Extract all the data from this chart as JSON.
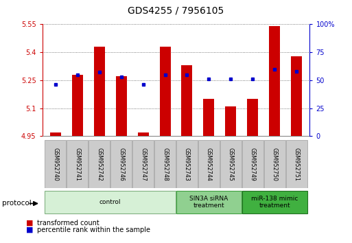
{
  "title": "GDS4255 / 7956105",
  "samples": [
    "GSM952740",
    "GSM952741",
    "GSM952742",
    "GSM952746",
    "GSM952747",
    "GSM952748",
    "GSM952743",
    "GSM952744",
    "GSM952745",
    "GSM952749",
    "GSM952750",
    "GSM952751"
  ],
  "red_values": [
    4.97,
    5.28,
    5.43,
    5.27,
    4.97,
    5.43,
    5.33,
    5.15,
    5.11,
    5.15,
    5.54,
    5.38
  ],
  "blue_values": [
    46,
    55,
    57,
    53,
    46,
    55,
    55,
    51,
    51,
    51,
    60,
    58
  ],
  "ylim_left": [
    4.95,
    5.55
  ],
  "ylim_right": [
    0,
    100
  ],
  "yticks_left": [
    4.95,
    5.1,
    5.25,
    5.4,
    5.55
  ],
  "yticks_right": [
    0,
    25,
    50,
    75,
    100
  ],
  "ytick_labels_left": [
    "4.95",
    "5.1",
    "5.25",
    "5.4",
    "5.55"
  ],
  "ytick_labels_right": [
    "0",
    "25",
    "50",
    "75",
    "100%"
  ],
  "group_spans": [
    {
      "start": 0,
      "end": 5,
      "label": "control",
      "facecolor": "#d6f0d6",
      "edgecolor": "#80b080"
    },
    {
      "start": 6,
      "end": 8,
      "label": "SIN3A siRNA\ntreatment",
      "facecolor": "#90d090",
      "edgecolor": "#40a040"
    },
    {
      "start": 9,
      "end": 11,
      "label": "miR-138 mimic\ntreatment",
      "facecolor": "#40b040",
      "edgecolor": "#207020"
    }
  ],
  "protocol_label": "protocol",
  "legend_red": "transformed count",
  "legend_blue": "percentile rank within the sample",
  "bar_color": "#cc0000",
  "dot_color": "#0000cc",
  "bar_width": 0.5,
  "base_value": 4.95,
  "title_fontsize": 10,
  "tick_label_fontsize": 7,
  "axis_color_left": "#cc0000",
  "axis_color_right": "#0000cc"
}
